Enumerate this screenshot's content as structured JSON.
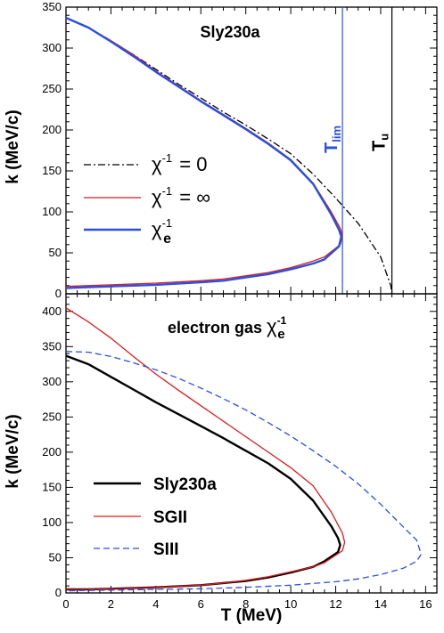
{
  "chart_data": [
    {
      "type": "line",
      "title": "Sly230a",
      "xlabel": "",
      "ylabel": "k (MeV/c)",
      "xlim": [
        0,
        16.5
      ],
      "ylim": [
        0,
        350
      ],
      "xticks": [
        "0",
        "2",
        "4",
        "6",
        "8",
        "10",
        "12",
        "14",
        "16"
      ],
      "yticks": [
        "0",
        "50",
        "100",
        "150",
        "200",
        "250",
        "300",
        "350"
      ],
      "series": [
        {
          "name": "χ⁻¹ = 0",
          "color": "#000000",
          "style": "dash-dot",
          "points": [
            [
              0,
              337
            ],
            [
              1,
              325
            ],
            [
              2,
              309
            ],
            [
              3,
              292
            ],
            [
              4,
              274
            ],
            [
              5,
              256
            ],
            [
              6,
              239
            ],
            [
              7,
              222
            ],
            [
              8,
              206
            ],
            [
              9,
              189
            ],
            [
              10,
              171
            ],
            [
              11,
              146
            ],
            [
              12,
              117
            ],
            [
              13,
              86
            ],
            [
              14,
              45
            ],
            [
              14.45,
              10
            ],
            [
              14.5,
              0
            ]
          ]
        },
        {
          "name": "χ⁻¹ = ∞",
          "color": "#e0191c",
          "style": "solid",
          "points": [
            [
              0,
              337
            ],
            [
              1,
              325
            ],
            [
              2,
              309
            ],
            [
              3,
              292
            ],
            [
              4,
              272
            ],
            [
              5,
              254
            ],
            [
              6,
              236
            ],
            [
              7,
              219
            ],
            [
              8,
              202
            ],
            [
              9,
              184
            ],
            [
              10,
              164
            ],
            [
              11,
              135
            ],
            [
              11.8,
              100
            ],
            [
              12.2,
              80
            ],
            [
              12.3,
              70
            ],
            [
              12.2,
              60
            ],
            [
              11.5,
              45
            ],
            [
              11,
              40
            ],
            [
              10,
              32
            ],
            [
              9,
              26
            ],
            [
              8,
              22
            ],
            [
              7,
              18
            ],
            [
              6,
              16
            ],
            [
              4,
              13
            ],
            [
              2,
              11
            ],
            [
              1,
              10
            ],
            [
              0,
              9
            ]
          ]
        },
        {
          "name": "χe⁻¹",
          "color": "#2a4fe0",
          "style": "solid",
          "points": [
            [
              0,
              337
            ],
            [
              1,
              325
            ],
            [
              2,
              308
            ],
            [
              3,
              290
            ],
            [
              4,
              271
            ],
            [
              5,
              253
            ],
            [
              6,
              235
            ],
            [
              7,
              218
            ],
            [
              8,
              201
            ],
            [
              9,
              183
            ],
            [
              10,
              163
            ],
            [
              11,
              134
            ],
            [
              11.8,
              97
            ],
            [
              12.15,
              78
            ],
            [
              12.25,
              70
            ],
            [
              12.15,
              58
            ],
            [
              11.5,
              42
            ],
            [
              11,
              37
            ],
            [
              10,
              30
            ],
            [
              9,
              24
            ],
            [
              8,
              20
            ],
            [
              7,
              16
            ],
            [
              6,
              14
            ],
            [
              4,
              11
            ],
            [
              2,
              9
            ],
            [
              1,
              8
            ],
            [
              0,
              7
            ]
          ]
        }
      ],
      "vlines": [
        {
          "label": "Tlim",
          "x": 12.3,
          "color": "#2a4fe0"
        },
        {
          "label": "Tu",
          "x": 14.5,
          "color": "#000000"
        }
      ],
      "legend": "left"
    },
    {
      "type": "line",
      "title": "electron gas χe⁻¹",
      "xlabel": "T (MeV)",
      "ylabel": "k (MeV/c)",
      "xlim": [
        0,
        16.5
      ],
      "ylim": [
        0,
        425
      ],
      "xticks": [
        "0",
        "2",
        "4",
        "6",
        "8",
        "10",
        "12",
        "14",
        "16"
      ],
      "yticks": [
        "0",
        "50",
        "100",
        "150",
        "200",
        "250",
        "300",
        "350",
        "400"
      ],
      "series": [
        {
          "name": "Sly230a",
          "color": "#000000",
          "style": "solid",
          "points": [
            [
              0,
              337
            ],
            [
              1,
              325
            ],
            [
              2,
              307
            ],
            [
              3,
              289
            ],
            [
              4,
              271
            ],
            [
              5,
              254
            ],
            [
              6,
              237
            ],
            [
              7,
              220
            ],
            [
              8,
              202
            ],
            [
              9,
              184
            ],
            [
              10,
              162
            ],
            [
              11,
              131
            ],
            [
              11.8,
              95
            ],
            [
              12.1,
              78
            ],
            [
              12.2,
              68
            ],
            [
              12.1,
              58
            ],
            [
              11.5,
              45
            ],
            [
              11,
              37
            ],
            [
              10,
              29
            ],
            [
              9,
              22
            ],
            [
              8,
              17
            ],
            [
              7,
              14
            ],
            [
              6,
              11
            ],
            [
              4,
              8
            ],
            [
              2,
              6
            ],
            [
              1,
              5
            ],
            [
              0,
              5
            ]
          ]
        },
        {
          "name": "SGII",
          "color": "#e0191c",
          "style": "solid",
          "points": [
            [
              0,
              405
            ],
            [
              1,
              385
            ],
            [
              2,
              362
            ],
            [
              3,
              336
            ],
            [
              4,
              311
            ],
            [
              5,
              288
            ],
            [
              6,
              266
            ],
            [
              7,
              244
            ],
            [
              8,
              222
            ],
            [
              9,
              200
            ],
            [
              10,
              178
            ],
            [
              11,
              152
            ],
            [
              11.8,
              115
            ],
            [
              12.3,
              85
            ],
            [
              12.4,
              72
            ],
            [
              12.3,
              60
            ],
            [
              11.5,
              43
            ],
            [
              11,
              37
            ],
            [
              10,
              30
            ],
            [
              9,
              23
            ],
            [
              8,
              18
            ],
            [
              7,
              14
            ],
            [
              6,
              11
            ],
            [
              4,
              8
            ],
            [
              2,
              6
            ],
            [
              1,
              5
            ],
            [
              0,
              5
            ]
          ]
        },
        {
          "name": "SIII",
          "color": "#2a4fe0",
          "style": "dashed",
          "points": [
            [
              0,
              343
            ],
            [
              1,
              342
            ],
            [
              2,
              336
            ],
            [
              3,
              327
            ],
            [
              4,
              317
            ],
            [
              5,
              305
            ],
            [
              6,
              291
            ],
            [
              7,
              276
            ],
            [
              8,
              260
            ],
            [
              9,
              242
            ],
            [
              10,
              223
            ],
            [
              11,
              202
            ],
            [
              12,
              180
            ],
            [
              13,
              155
            ],
            [
              14,
              126
            ],
            [
              15,
              94
            ],
            [
              15.6,
              75
            ],
            [
              15.8,
              55
            ],
            [
              15.6,
              45
            ],
            [
              15,
              35
            ],
            [
              14,
              26
            ],
            [
              13,
              20
            ],
            [
              12,
              16
            ],
            [
              10,
              11
            ],
            [
              8,
              8
            ],
            [
              6,
              6
            ],
            [
              4,
              5
            ],
            [
              2,
              4
            ],
            [
              0,
              3
            ]
          ]
        }
      ],
      "legend": "bottom-left"
    }
  ]
}
